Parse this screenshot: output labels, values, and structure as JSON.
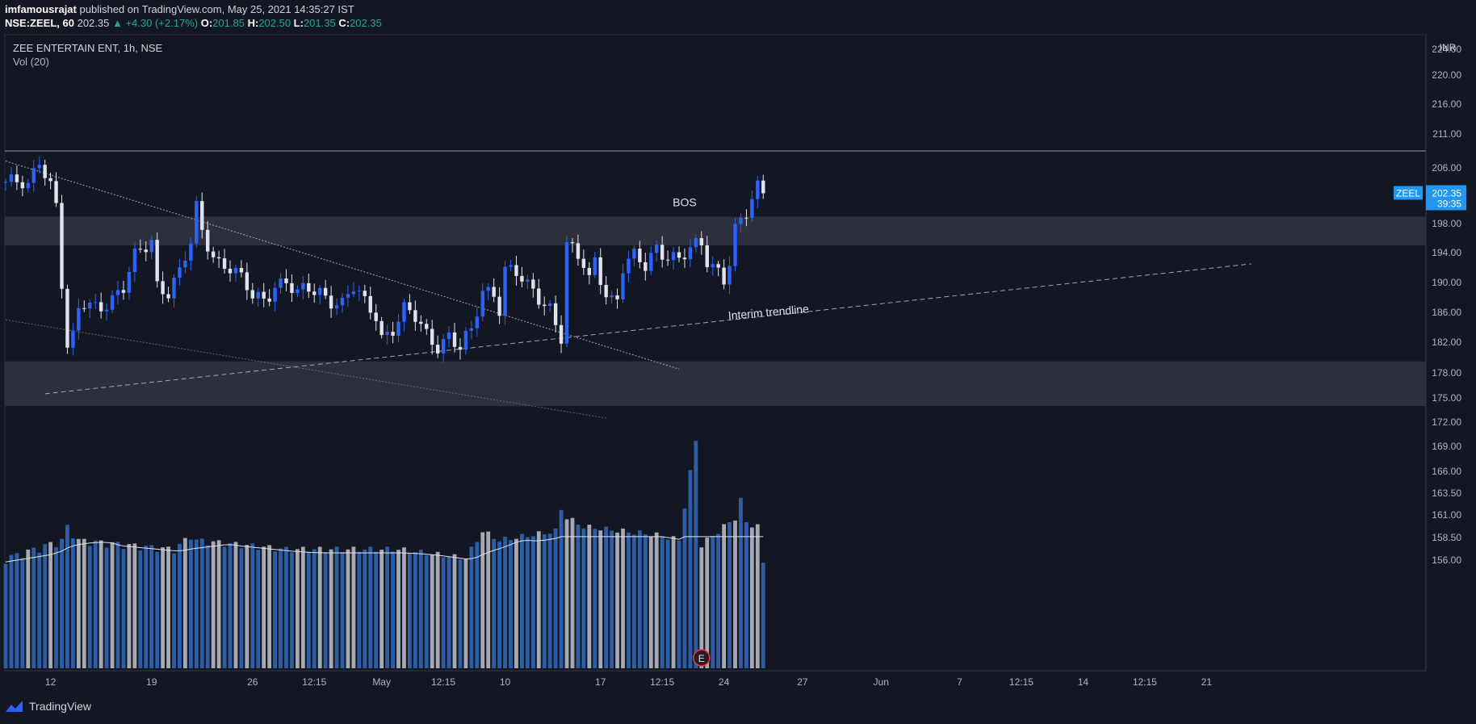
{
  "header": {
    "line1": {
      "author": "imfamousrajat",
      "rest": "published on TradingView.com, May 25, 2021 14:35:27 IST"
    },
    "line2": {
      "symbol": "NSE:ZEEL, 60",
      "price": "202.35",
      "change": "▲ +4.30 (+2.17%)",
      "o_label": "O:",
      "o": "201.85",
      "h_label": "H:",
      "h": "202.50",
      "l_label": "L:",
      "l": "201.35",
      "c_label": "C:",
      "c": "202.35"
    }
  },
  "legend": {
    "title": "ZEE ENTERTAIN ENT, 1h, NSE",
    "vol": "Vol (20)"
  },
  "currency": "INR",
  "footer": {
    "brand": "TradingView"
  },
  "chart_data": {
    "type": "candlestick",
    "ylim": [
      153.5,
      225.5
    ],
    "y_ticks": [
      "224.00",
      "220.00",
      "216.00",
      "211.00",
      "206.00",
      "198.00",
      "194.00",
      "190.00",
      "186.00",
      "182.00",
      "178.00",
      "175.00",
      "172.00",
      "169.00",
      "166.00",
      "163.50",
      "161.00",
      "158.50",
      "156.00"
    ],
    "y_tick_values": [
      224,
      220,
      216,
      211,
      206,
      198,
      194,
      190,
      186,
      182,
      178,
      175,
      172,
      169,
      166,
      163.5,
      161,
      158.5,
      156
    ],
    "x_ticks": [
      "12",
      "19",
      "26",
      "12:15",
      "May",
      "12:15",
      "10",
      "17",
      "12:15",
      "24",
      "27",
      "Jun",
      "7",
      "12:15",
      "14",
      "12:15",
      "21"
    ],
    "x_tick_index": [
      8,
      26,
      44,
      55,
      67,
      78,
      89,
      106,
      117,
      128,
      142,
      156,
      170,
      181,
      192,
      203,
      214
    ],
    "bar_count": 222,
    "last_price": {
      "symbol": "ZEEL",
      "value": 202.35,
      "countdown": "39:35"
    },
    "horizontal_line": 208.5,
    "zones": [
      {
        "from": 195,
        "to": 199
      },
      {
        "from": 174,
        "to": 179.5
      }
    ],
    "trendlines": [
      {
        "style": "dotted",
        "from": {
          "bar": 0,
          "price": 207
        },
        "to": {
          "bar": 120,
          "price": 178.5
        }
      },
      {
        "style": "dotted-faint",
        "from": {
          "bar": 0,
          "price": 185
        },
        "to": {
          "bar": 107,
          "price": 172.5
        }
      },
      {
        "style": "dashed",
        "from": {
          "bar": 7,
          "price": 175.5
        },
        "to": {
          "bar": 222,
          "price": 192.5
        }
      }
    ],
    "annotations": [
      {
        "text": "BOS",
        "bar": 121,
        "price": 200.5
      },
      {
        "text": "Interim trendline",
        "bar": 136,
        "price": 185.5,
        "angle": -5
      }
    ],
    "earnings_marker": {
      "bar": 124,
      "label": "E"
    },
    "keypoints": [
      [
        0,
        204
      ],
      [
        4,
        203
      ],
      [
        6,
        207.5
      ],
      [
        8,
        204
      ],
      [
        9,
        201
      ],
      [
        10,
        190
      ],
      [
        11,
        181
      ],
      [
        12,
        182
      ],
      [
        13,
        186
      ],
      [
        14,
        187
      ],
      [
        16,
        187
      ],
      [
        19,
        188
      ],
      [
        21,
        189
      ],
      [
        23,
        193
      ],
      [
        26,
        196
      ],
      [
        27,
        190
      ],
      [
        29,
        189
      ],
      [
        31,
        191
      ],
      [
        33,
        195
      ],
      [
        34,
        200
      ],
      [
        35,
        197
      ],
      [
        37,
        194
      ],
      [
        38,
        193
      ],
      [
        40,
        192
      ],
      [
        42,
        190
      ],
      [
        44,
        188
      ],
      [
        46,
        188
      ],
      [
        48,
        190
      ],
      [
        50,
        190
      ],
      [
        52,
        188
      ],
      [
        54,
        189
      ],
      [
        56,
        189
      ],
      [
        58,
        188
      ],
      [
        60,
        187
      ],
      [
        62,
        189
      ],
      [
        64,
        187
      ],
      [
        66,
        186
      ],
      [
        67,
        183
      ],
      [
        69,
        184
      ],
      [
        71,
        186
      ],
      [
        73,
        185
      ],
      [
        75,
        183
      ],
      [
        77,
        182
      ],
      [
        79,
        183
      ],
      [
        81,
        181
      ],
      [
        83,
        183
      ],
      [
        85,
        189
      ],
      [
        87,
        189
      ],
      [
        88,
        187
      ],
      [
        89,
        192
      ],
      [
        91,
        191
      ],
      [
        93,
        189
      ],
      [
        95,
        188
      ],
      [
        97,
        187
      ],
      [
        98,
        185
      ],
      [
        99,
        183
      ],
      [
        100,
        195
      ],
      [
        101,
        194
      ],
      [
        103,
        192
      ],
      [
        104,
        190
      ],
      [
        105,
        193
      ],
      [
        107,
        189
      ],
      [
        108,
        188
      ],
      [
        109,
        188
      ],
      [
        110,
        192
      ],
      [
        112,
        193
      ],
      [
        114,
        192
      ],
      [
        116,
        195
      ],
      [
        118,
        194
      ],
      [
        120,
        193
      ],
      [
        122,
        194
      ],
      [
        124,
        195
      ],
      [
        125,
        193
      ],
      [
        127,
        192
      ],
      [
        128,
        191
      ],
      [
        129,
        193
      ],
      [
        130,
        197
      ],
      [
        132,
        199
      ],
      [
        133,
        201
      ],
      [
        134,
        203
      ],
      [
        135,
        202.35
      ]
    ],
    "volume_keypoints": [
      [
        0,
        156
      ],
      [
        10,
        158
      ],
      [
        11,
        159.5
      ],
      [
        13,
        158
      ],
      [
        30,
        157
      ],
      [
        33,
        158.5
      ],
      [
        34,
        158
      ],
      [
        50,
        157
      ],
      [
        70,
        157
      ],
      [
        82,
        156
      ],
      [
        85,
        159
      ],
      [
        88,
        158
      ],
      [
        98,
        159
      ],
      [
        99,
        161.5
      ],
      [
        100,
        160.5
      ],
      [
        103,
        159.5
      ],
      [
        110,
        159
      ],
      [
        117,
        158.5
      ],
      [
        120,
        158
      ],
      [
        123,
        169.5
      ],
      [
        124,
        157.5
      ],
      [
        130,
        160.5
      ],
      [
        131,
        162.5
      ],
      [
        132,
        160
      ],
      [
        134,
        159.5
      ],
      [
        135,
        155.5
      ]
    ]
  }
}
